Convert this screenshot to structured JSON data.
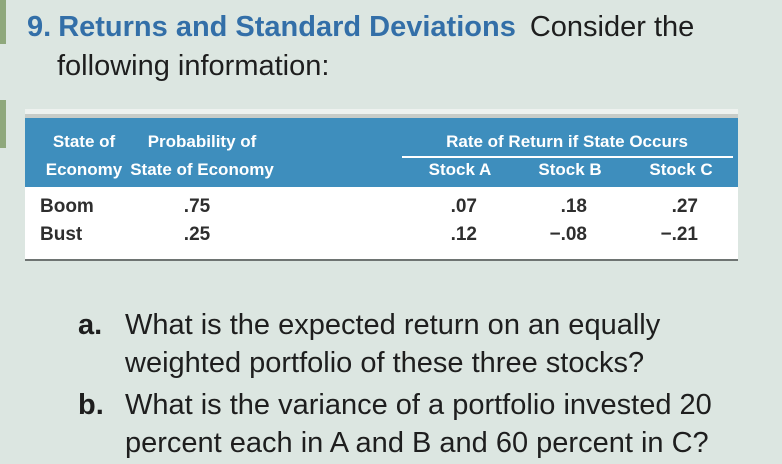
{
  "colors": {
    "page_bg": "#dce6e1",
    "header_bg": "#3e8ebd",
    "heading_blue": "#336fa8",
    "accent_green": "#8fa87c"
  },
  "problem": {
    "number": "9.",
    "title": "Returns and Standard Deviations",
    "intro_line1": "Consider the",
    "intro_line2": "following information:"
  },
  "table": {
    "header": {
      "state_line1": "State of",
      "state_line2": "Economy",
      "prob_line1": "Probability of",
      "prob_line2": "State of Economy",
      "group": "Rate of Return if State Occurs",
      "stock_a": "Stock A",
      "stock_b": "Stock B",
      "stock_c": "Stock C"
    },
    "rows": [
      {
        "state": "Boom",
        "prob": ".75",
        "a": ".07",
        "b": ".18",
        "c": ".27"
      },
      {
        "state": "Bust",
        "prob": ".25",
        "a": ".12",
        "b": "−.08",
        "c": "−.21"
      }
    ]
  },
  "questions": [
    {
      "label": "a.",
      "lines": [
        "What is the expected return on an equally",
        "weighted portfolio of these three stocks?"
      ]
    },
    {
      "label": "b.",
      "lines": [
        "What is the variance of a portfolio invested 20",
        "percent each in A and B and 60 percent in C?"
      ]
    }
  ]
}
